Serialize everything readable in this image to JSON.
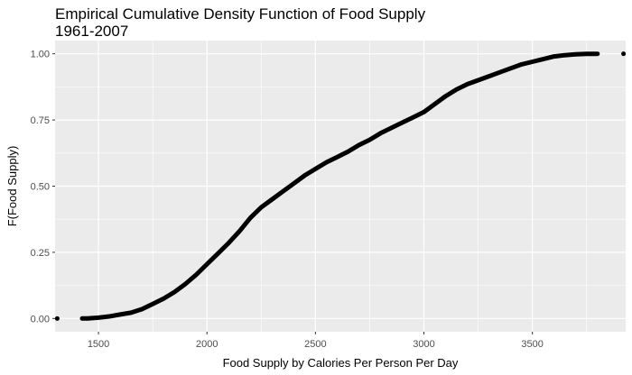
{
  "chart_data": {
    "type": "line",
    "title": "Empirical Cumulative Density Function of Food Supply\n1961-2007",
    "xlabel": "Food Supply by Calories Per Person Per Day",
    "ylabel": "F(Food Supply)",
    "xlim": [
      1300,
      3930
    ],
    "ylim": [
      -0.05,
      1.05
    ],
    "x_ticks": [
      1500,
      2000,
      2500,
      3000,
      3500
    ],
    "y_ticks": [
      0.0,
      0.25,
      0.5,
      0.75,
      1.0
    ],
    "x_tick_labels": [
      "1500",
      "2000",
      "2500",
      "3000",
      "3500"
    ],
    "y_tick_labels": [
      "0.00",
      "0.25",
      "0.50",
      "0.75",
      "1.00"
    ],
    "grid": true,
    "background": "#ebebeb",
    "grid_color": "#ffffff",
    "line_color": "#000000",
    "series": [
      {
        "x": [
          1310,
          1425,
          1450,
          1500,
          1550,
          1600,
          1650,
          1700,
          1750,
          1800,
          1850,
          1900,
          1950,
          2000,
          2050,
          2100,
          2150,
          2200,
          2250,
          2300,
          2350,
          2400,
          2450,
          2500,
          2550,
          2600,
          2650,
          2700,
          2750,
          2800,
          2850,
          2900,
          2950,
          3000,
          3050,
          3100,
          3150,
          3200,
          3250,
          3300,
          3350,
          3400,
          3450,
          3500,
          3550,
          3600,
          3650,
          3700,
          3750,
          3800,
          3920
        ],
        "y": [
          0.0,
          0.0,
          0.0,
          0.003,
          0.008,
          0.015,
          0.022,
          0.035,
          0.055,
          0.075,
          0.1,
          0.13,
          0.165,
          0.205,
          0.245,
          0.285,
          0.33,
          0.38,
          0.42,
          0.45,
          0.48,
          0.51,
          0.54,
          0.565,
          0.59,
          0.61,
          0.63,
          0.655,
          0.675,
          0.7,
          0.72,
          0.74,
          0.76,
          0.78,
          0.81,
          0.84,
          0.865,
          0.885,
          0.9,
          0.915,
          0.93,
          0.945,
          0.96,
          0.97,
          0.98,
          0.99,
          0.995,
          0.998,
          1.0,
          1.0,
          1.0
        ]
      }
    ]
  }
}
